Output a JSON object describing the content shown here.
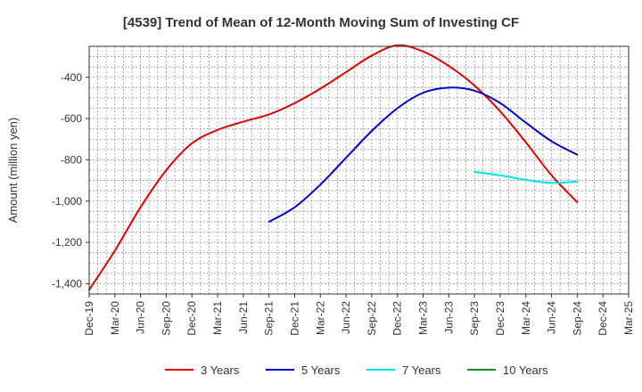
{
  "chart_data": {
    "type": "line",
    "title": "[4539]  Trend of Mean of 12-Month Moving Sum of Investing CF",
    "xlabel": "",
    "ylabel": "Amount (million yen)",
    "ylim": [
      -1450,
      -250
    ],
    "yticks": [
      -1400,
      -1200,
      -1000,
      -800,
      -600,
      -400
    ],
    "ytick_labels": [
      "-1,400",
      "-1,200",
      "-1,000",
      "-800",
      "-600",
      "-400"
    ],
    "x_categories": [
      "Dec-19",
      "Mar-20",
      "Jun-20",
      "Sep-20",
      "Dec-20",
      "Mar-21",
      "Jun-21",
      "Sep-21",
      "Dec-21",
      "Mar-22",
      "Jun-22",
      "Sep-22",
      "Dec-22",
      "Mar-23",
      "Jun-23",
      "Sep-23",
      "Dec-23",
      "Mar-24",
      "Jun-24",
      "Sep-24",
      "Dec-24",
      "Mar-25"
    ],
    "grid": true,
    "legend_position": "bottom",
    "series": [
      {
        "name": "3 Years",
        "color": "#e00000",
        "points": [
          {
            "x": "Dec-19",
            "y": -1430
          },
          {
            "x": "Mar-20",
            "y": -1240
          },
          {
            "x": "Jun-20",
            "y": -1030
          },
          {
            "x": "Sep-20",
            "y": -850
          },
          {
            "x": "Dec-20",
            "y": -720
          },
          {
            "x": "Mar-21",
            "y": -655
          },
          {
            "x": "Jun-21",
            "y": -615
          },
          {
            "x": "Sep-21",
            "y": -580
          },
          {
            "x": "Dec-21",
            "y": -525
          },
          {
            "x": "Mar-22",
            "y": -455
          },
          {
            "x": "Jun-22",
            "y": -375
          },
          {
            "x": "Sep-22",
            "y": -295
          },
          {
            "x": "Dec-22",
            "y": -245
          },
          {
            "x": "Mar-23",
            "y": -275
          },
          {
            "x": "Jun-23",
            "y": -345
          },
          {
            "x": "Sep-23",
            "y": -440
          },
          {
            "x": "Dec-23",
            "y": -565
          },
          {
            "x": "Mar-24",
            "y": -715
          },
          {
            "x": "Jun-24",
            "y": -875
          },
          {
            "x": "Sep-24",
            "y": -1005
          }
        ]
      },
      {
        "name": "5 Years",
        "color": "#0000cc",
        "points": [
          {
            "x": "Sep-21",
            "y": -1100
          },
          {
            "x": "Dec-21",
            "y": -1030
          },
          {
            "x": "Mar-22",
            "y": -920
          },
          {
            "x": "Jun-22",
            "y": -790
          },
          {
            "x": "Sep-22",
            "y": -660
          },
          {
            "x": "Dec-22",
            "y": -550
          },
          {
            "x": "Mar-23",
            "y": -475
          },
          {
            "x": "Jun-23",
            "y": -450
          },
          {
            "x": "Sep-23",
            "y": -465
          },
          {
            "x": "Dec-23",
            "y": -525
          },
          {
            "x": "Mar-24",
            "y": -620
          },
          {
            "x": "Jun-24",
            "y": -710
          },
          {
            "x": "Sep-24",
            "y": -775
          }
        ]
      },
      {
        "name": "7 Years",
        "color": "#00e5e5",
        "points": [
          {
            "x": "Sep-23",
            "y": -858
          },
          {
            "x": "Dec-23",
            "y": -875
          },
          {
            "x": "Mar-24",
            "y": -897
          },
          {
            "x": "Jun-24",
            "y": -912
          },
          {
            "x": "Sep-24",
            "y": -905
          }
        ]
      },
      {
        "name": "10 Years",
        "color": "#228b22",
        "points": []
      }
    ]
  }
}
